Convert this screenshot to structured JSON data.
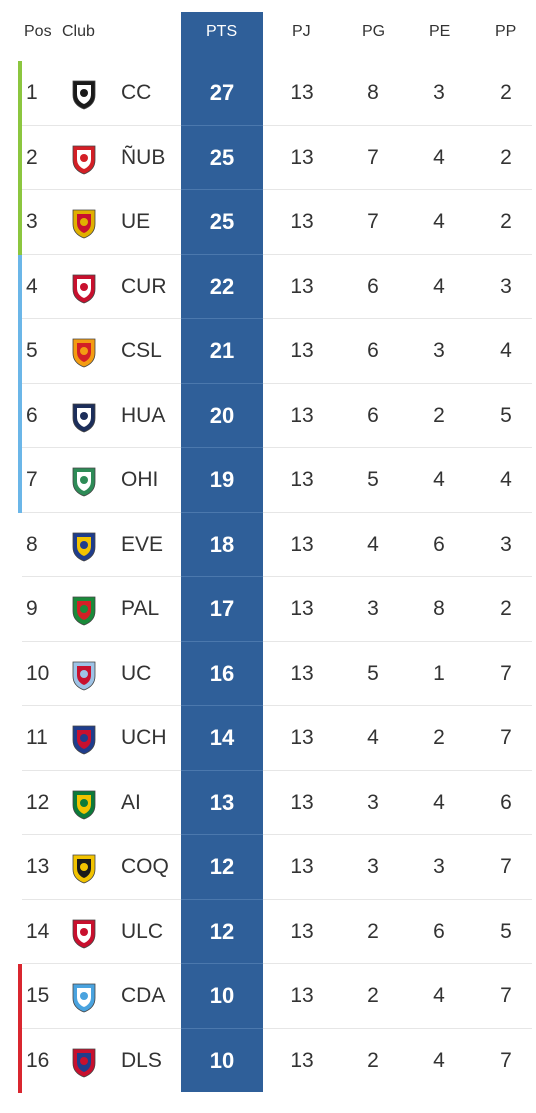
{
  "headers": {
    "pos": "Pos",
    "club": "Club",
    "pts": "PTS",
    "pj": "PJ",
    "pg": "PG",
    "pe": "PE",
    "pp": "PP"
  },
  "colors": {
    "pts_column": "#2f5f99",
    "zone_green": "#8cc63f",
    "zone_blue": "#6bb6e8",
    "zone_red": "#d9262f"
  },
  "rows": [
    {
      "pos": "1",
      "club": "CC",
      "pts": "27",
      "pj": "13",
      "pg": "8",
      "pe": "3",
      "pp": "2",
      "zone": "green",
      "logo": "colo-colo-crest-icon"
    },
    {
      "pos": "2",
      "club": "ÑUB",
      "pts": "25",
      "pj": "13",
      "pg": "7",
      "pe": "4",
      "pp": "2",
      "zone": "green",
      "logo": "nublense-crest-icon"
    },
    {
      "pos": "3",
      "club": "UE",
      "pts": "25",
      "pj": "13",
      "pg": "7",
      "pe": "4",
      "pp": "2",
      "zone": "green",
      "logo": "union-espanola-crest-icon"
    },
    {
      "pos": "4",
      "club": "CUR",
      "pts": "22",
      "pj": "13",
      "pg": "6",
      "pe": "4",
      "pp": "3",
      "zone": "blue",
      "logo": "curico-crest-icon"
    },
    {
      "pos": "5",
      "club": "CSL",
      "pts": "21",
      "pj": "13",
      "pg": "6",
      "pe": "3",
      "pp": "4",
      "zone": "blue",
      "logo": "cobresal-crest-icon"
    },
    {
      "pos": "6",
      "club": "HUA",
      "pts": "20",
      "pj": "13",
      "pg": "6",
      "pe": "2",
      "pp": "5",
      "zone": "blue",
      "logo": "huachipato-crest-icon"
    },
    {
      "pos": "7",
      "club": "OHI",
      "pts": "19",
      "pj": "13",
      "pg": "5",
      "pe": "4",
      "pp": "4",
      "zone": "blue",
      "logo": "ohiggins-crest-icon"
    },
    {
      "pos": "8",
      "club": "EVE",
      "pts": "18",
      "pj": "13",
      "pg": "4",
      "pe": "6",
      "pp": "3",
      "zone": "none",
      "logo": "everton-crest-icon"
    },
    {
      "pos": "9",
      "club": "PAL",
      "pts": "17",
      "pj": "13",
      "pg": "3",
      "pe": "8",
      "pp": "2",
      "zone": "none",
      "logo": "palestino-crest-icon"
    },
    {
      "pos": "10",
      "club": "UC",
      "pts": "16",
      "pj": "13",
      "pg": "5",
      "pe": "1",
      "pp": "7",
      "zone": "none",
      "logo": "catolica-crest-icon"
    },
    {
      "pos": "11",
      "club": "UCH",
      "pts": "14",
      "pj": "13",
      "pg": "4",
      "pe": "2",
      "pp": "7",
      "zone": "none",
      "logo": "u-de-chile-crest-icon"
    },
    {
      "pos": "12",
      "club": "AI",
      "pts": "13",
      "pj": "13",
      "pg": "3",
      "pe": "4",
      "pp": "6",
      "zone": "none",
      "logo": "audax-italiano-crest-icon"
    },
    {
      "pos": "13",
      "club": "COQ",
      "pts": "12",
      "pj": "13",
      "pg": "3",
      "pe": "3",
      "pp": "7",
      "zone": "none",
      "logo": "coquimbo-crest-icon"
    },
    {
      "pos": "14",
      "club": "ULC",
      "pts": "12",
      "pj": "13",
      "pg": "2",
      "pe": "6",
      "pp": "5",
      "zone": "none",
      "logo": "la-calera-crest-icon"
    },
    {
      "pos": "15",
      "club": "CDA",
      "pts": "10",
      "pj": "13",
      "pg": "2",
      "pe": "4",
      "pp": "7",
      "zone": "red",
      "logo": "antofagasta-crest-icon"
    },
    {
      "pos": "16",
      "club": "DLS",
      "pts": "10",
      "pj": "13",
      "pg": "2",
      "pe": "4",
      "pp": "7",
      "zone": "red",
      "logo": "la-serena-crest-icon"
    }
  ]
}
